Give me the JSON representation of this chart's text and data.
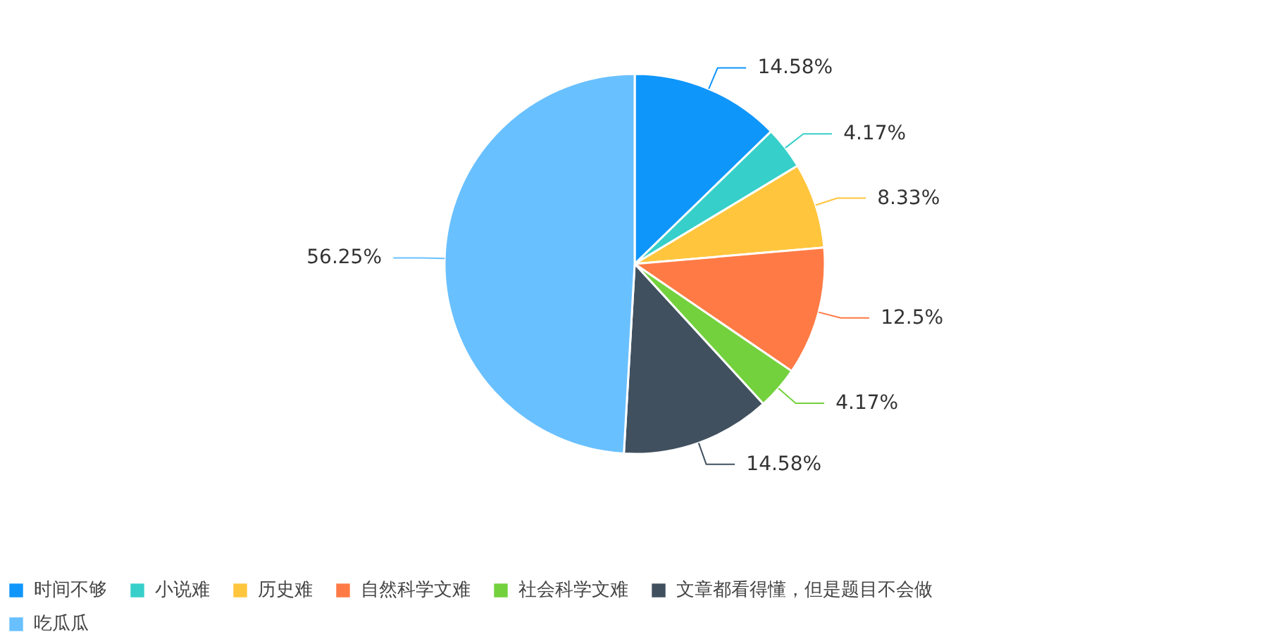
{
  "chart_data": {
    "type": "pie",
    "categories": [
      "时间不够",
      "小说难",
      "历史难",
      "自然科学文难",
      "社会科学文难",
      "文章都看得懂，但是题目不会做",
      "吃瓜瓜"
    ],
    "values": [
      14.58,
      4.17,
      8.33,
      12.5,
      4.17,
      14.58,
      56.25
    ],
    "value_labels": [
      "14.58%",
      "4.17%",
      "8.33%",
      "12.5%",
      "4.17%",
      "14.58%",
      "56.25%"
    ],
    "colors": [
      "#0f96fa",
      "#36cfc9",
      "#ffc53d",
      "#ff7a45",
      "#73d13d",
      "#40505f",
      "#69c0ff"
    ],
    "legend": "bottom"
  }
}
